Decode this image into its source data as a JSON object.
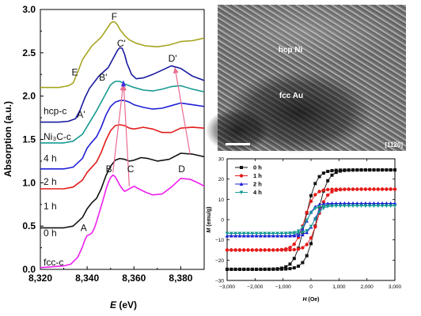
{
  "colors": {
    "fcc_c": "#ee1fee",
    "zero_h": "#111111",
    "one_h": "#e41b1b",
    "two_h": "#1f1fd6",
    "four_h": "#169a92",
    "ni3c_c": "#1a1aa0",
    "hcp_c": "#a6a420",
    "arrow": "#e96b8e",
    "blue_arrow": "#3d2ae0"
  },
  "tem": {
    "label_hcp": "hcp Ni",
    "label_fcc": "fcc Au",
    "zone_axis": "[11̅2̅0]"
  },
  "chart_data": [
    {
      "type": "line",
      "id": "xanes",
      "xlabel_italic": "E",
      "xlabel_rest": " (eV)",
      "ylabel": "Absorption (a.u.)",
      "xlim": [
        8320,
        8390
      ],
      "ylim": [
        0.0,
        3.0
      ],
      "xticks": [
        "8,320",
        "8,340",
        "8,360",
        "8,380"
      ],
      "xtick_values": [
        8320,
        8340,
        8360,
        8380
      ],
      "yticks": [
        "0.0",
        "0.5",
        "1.0",
        "1.5",
        "2.0",
        "2.5",
        "3.0"
      ],
      "ytick_values": [
        0,
        0.5,
        1.0,
        1.5,
        2.0,
        2.5,
        3.0
      ],
      "series": [
        {
          "name": "fcc-c",
          "label_y": 0.08,
          "color_key": "fcc_c",
          "x": [
            8320,
            8325,
            8330,
            8333,
            8336,
            8338,
            8339,
            8340,
            8341,
            8342,
            8343,
            8344,
            8345,
            8346,
            8347,
            8348,
            8349,
            8350,
            8351,
            8352,
            8353,
            8354,
            8355,
            8356,
            8358,
            8360,
            8362,
            8365,
            8368,
            8372,
            8376,
            8380,
            8384,
            8388,
            8390
          ],
          "y": [
            0.02,
            0.03,
            0.04,
            0.06,
            0.14,
            0.26,
            0.34,
            0.39,
            0.4,
            0.42,
            0.47,
            0.55,
            0.64,
            0.73,
            0.82,
            0.92,
            1.0,
            1.06,
            1.09,
            1.07,
            1.02,
            0.97,
            0.93,
            0.9,
            0.93,
            0.96,
            0.93,
            0.89,
            0.86,
            0.87,
            0.95,
            1.05,
            1.04,
            0.99,
            0.96
          ]
        },
        {
          "name": "0 h",
          "label_y": 0.42,
          "color_key": "zero_h",
          "x": [
            8320,
            8330,
            8334,
            8338,
            8340,
            8342,
            8344,
            8346,
            8348,
            8350,
            8352,
            8354,
            8356,
            8358,
            8360,
            8363,
            8366,
            8370,
            8375,
            8380,
            8385,
            8390
          ],
          "y": [
            0.48,
            0.48,
            0.5,
            0.6,
            0.7,
            0.77,
            0.82,
            0.93,
            1.08,
            1.19,
            1.26,
            1.28,
            1.27,
            1.25,
            1.26,
            1.29,
            1.28,
            1.25,
            1.27,
            1.34,
            1.33,
            1.3
          ]
        },
        {
          "name": "1 h",
          "label_y": 0.73,
          "color_key": "one_h",
          "x": [
            8320,
            8330,
            8334,
            8338,
            8340,
            8342,
            8344,
            8346,
            8348,
            8350,
            8352,
            8354,
            8356,
            8358,
            8360,
            8364,
            8368,
            8372,
            8376,
            8380,
            8385,
            8390
          ],
          "y": [
            0.93,
            0.93,
            0.95,
            1.03,
            1.12,
            1.18,
            1.24,
            1.35,
            1.49,
            1.6,
            1.66,
            1.67,
            1.66,
            1.63,
            1.62,
            1.64,
            1.62,
            1.58,
            1.58,
            1.63,
            1.64,
            1.63
          ]
        },
        {
          "name": "2 h",
          "label_y": 1.01,
          "color_key": "two_h",
          "x": [
            8320,
            8330,
            8334,
            8338,
            8340,
            8342,
            8344,
            8346,
            8348,
            8350,
            8352,
            8354,
            8356,
            8358,
            8360,
            8364,
            8368,
            8372,
            8376,
            8380,
            8385,
            8390
          ],
          "y": [
            1.16,
            1.16,
            1.18,
            1.28,
            1.4,
            1.47,
            1.53,
            1.64,
            1.78,
            1.88,
            1.93,
            1.95,
            1.95,
            1.93,
            1.9,
            1.87,
            1.85,
            1.86,
            1.89,
            1.92,
            1.9,
            1.88
          ]
        },
        {
          "name": "4 h",
          "label_y": 1.28,
          "color_key": "four_h",
          "x": [
            8320,
            8330,
            8334,
            8338,
            8340,
            8342,
            8344,
            8346,
            8348,
            8350,
            8352,
            8354,
            8356,
            8358,
            8360,
            8364,
            8368,
            8372,
            8376,
            8380,
            8385,
            8390
          ],
          "y": [
            1.46,
            1.46,
            1.48,
            1.56,
            1.65,
            1.74,
            1.83,
            1.93,
            2.03,
            2.13,
            2.17,
            2.17,
            2.14,
            2.12,
            2.1,
            2.07,
            2.06,
            2.08,
            2.11,
            2.12,
            2.08,
            2.05
          ]
        },
        {
          "name": "Ni₃C-c",
          "label_y": 1.53,
          "color_key": "ni3c_c",
          "x": [
            8320,
            8328,
            8332,
            8335,
            8337,
            8339,
            8341,
            8343,
            8345,
            8347,
            8349,
            8351,
            8353,
            8354,
            8355,
            8356,
            8357,
            8359,
            8361,
            8364,
            8368,
            8372,
            8376,
            8380,
            8385,
            8390
          ],
          "y": [
            1.7,
            1.7,
            1.71,
            1.74,
            1.84,
            1.98,
            2.09,
            2.16,
            2.23,
            2.28,
            2.33,
            2.43,
            2.53,
            2.56,
            2.55,
            2.48,
            2.38,
            2.25,
            2.2,
            2.21,
            2.25,
            2.3,
            2.35,
            2.32,
            2.23,
            2.18
          ]
        },
        {
          "name": "hcp-c",
          "label_y": 1.83,
          "color_key": "hcp_c",
          "x": [
            8320,
            8328,
            8332,
            8334,
            8336,
            8338,
            8340,
            8342,
            8344,
            8346,
            8348,
            8350,
            8351,
            8352,
            8353,
            8354,
            8356,
            8358,
            8361,
            8365,
            8370,
            8375,
            8380,
            8385,
            8390
          ],
          "y": [
            2.1,
            2.1,
            2.12,
            2.15,
            2.28,
            2.42,
            2.5,
            2.58,
            2.63,
            2.68,
            2.76,
            2.84,
            2.86,
            2.85,
            2.82,
            2.77,
            2.7,
            2.65,
            2.61,
            2.58,
            2.57,
            2.59,
            2.63,
            2.64,
            2.67
          ]
        }
      ],
      "annotations": [
        {
          "text": "A",
          "x": 8338.5,
          "y": 0.44
        },
        {
          "text": "B",
          "x": 8349.3,
          "y": 1.12
        },
        {
          "text": "C",
          "x": 8358.6,
          "y": 1.12
        },
        {
          "text": "D",
          "x": 8380.4,
          "y": 1.12
        },
        {
          "text": "A'",
          "x": 8337.4,
          "y": 1.75
        },
        {
          "text": "B'",
          "x": 8346.8,
          "y": 2.18
        },
        {
          "text": "C'",
          "x": 8354.6,
          "y": 2.57
        },
        {
          "text": "D'",
          "x": 8376.5,
          "y": 2.4
        },
        {
          "text": "E",
          "x": 8334.7,
          "y": 2.24
        },
        {
          "text": "F",
          "x": 8351.6,
          "y": 2.88
        }
      ],
      "arrows": [
        {
          "from": [
            8351.0,
            1.12
          ],
          "to": [
            8355.4,
            2.13
          ],
          "color_key": "arrow"
        },
        {
          "from": [
            8358.0,
            0.96
          ],
          "to": [
            8355.6,
            2.13
          ],
          "color_key": "arrow"
        },
        {
          "from": [
            8384.0,
            1.33
          ],
          "to": [
            8377.5,
            2.33
          ],
          "color_key": "arrow"
        }
      ]
    },
    {
      "type": "line",
      "id": "magnetization",
      "xlabel": "H (Oe)",
      "ylabel": "M (emu/g)",
      "xlim": [
        -3000,
        3000
      ],
      "ylim": [
        -30,
        30
      ],
      "xticks": [
        "−3,000",
        "−2,000",
        "−1,000",
        "0",
        "1,000",
        "2,000",
        "3,000"
      ],
      "xtick_values": [
        -3000,
        -2000,
        -1000,
        0,
        1000,
        2000,
        3000
      ],
      "yticks": [
        "−30",
        "−20",
        "−10",
        "0",
        "10",
        "20",
        "30"
      ],
      "ytick_values": [
        -30,
        -20,
        -10,
        0,
        10,
        20,
        30
      ],
      "legend_position": "top-left",
      "series": [
        {
          "name": "0 h",
          "marker": "square",
          "color_key": "zero_h",
          "Ms": 24.5,
          "Hc": 200,
          "width": 380
        },
        {
          "name": "1 h",
          "marker": "circle",
          "color_key": "one_h",
          "Ms": 15.0,
          "Hc": 230,
          "width": 330
        },
        {
          "name": "2 h",
          "marker": "triangle",
          "color_key": "two_h",
          "Ms": 8.0,
          "Hc": 130,
          "width": 260
        },
        {
          "name": "4 h",
          "marker": "triangle-down",
          "color_key": "four_h",
          "Ms": 6.8,
          "Hc": 140,
          "width": 260
        }
      ]
    }
  ]
}
